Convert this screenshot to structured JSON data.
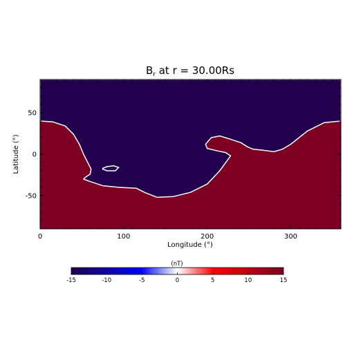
{
  "chart_data": {
    "type": "heatmap",
    "title": "B_r at r = 30.00Rs",
    "title_parts": {
      "main": "B",
      "sub": "r",
      "rest": " at r = 30.00Rs"
    },
    "xlabel": "Longitude (°)",
    "ylabel": "Latitude (°)",
    "xlim": [
      0,
      360
    ],
    "ylim": [
      -90,
      90
    ],
    "xticks": [
      0,
      100,
      200,
      300
    ],
    "yticks": [
      50,
      0,
      -50
    ],
    "colorbar": {
      "label": "(nT)",
      "range": [
        -15,
        15
      ],
      "ticks": [
        -15,
        -10,
        -5,
        0,
        5,
        10,
        15
      ],
      "colors": {
        "negative": "#22004d",
        "zero": "#ffffff",
        "positive": "#7d0023"
      }
    },
    "polarity_regions": {
      "positive_value": 15,
      "negative_value": -15,
      "neutral_line_lon_lat": [
        [
          0,
          40
        ],
        [
          15,
          39
        ],
        [
          30,
          34
        ],
        [
          40,
          24
        ],
        [
          47,
          12
        ],
        [
          52,
          0
        ],
        [
          57,
          -10
        ],
        [
          61,
          -18
        ],
        [
          60,
          -24
        ],
        [
          54,
          -28
        ],
        [
          52,
          -30
        ],
        [
          60,
          -33
        ],
        [
          75,
          -38
        ],
        [
          95,
          -40
        ],
        [
          115,
          -41
        ],
        [
          125,
          -46
        ],
        [
          140,
          -52
        ],
        [
          160,
          -51
        ],
        [
          180,
          -46
        ],
        [
          200,
          -36
        ],
        [
          215,
          -20
        ],
        [
          228,
          -2
        ],
        [
          222,
          2
        ],
        [
          212,
          4
        ],
        [
          200,
          7
        ],
        [
          198,
          12
        ],
        [
          205,
          20
        ],
        [
          215,
          22
        ],
        [
          228,
          18
        ],
        [
          240,
          14
        ],
        [
          248,
          9
        ],
        [
          255,
          6
        ],
        [
          265,
          5
        ],
        [
          280,
          3
        ],
        [
          290,
          6
        ],
        [
          300,
          12
        ],
        [
          320,
          28
        ],
        [
          340,
          38
        ],
        [
          360,
          40
        ]
      ],
      "negative_islands_lon_lat": [
        [
          [
            75,
            -17
          ],
          [
            80,
            -15
          ],
          [
            88,
            -14
          ],
          [
            94,
            -16
          ],
          [
            90,
            -20
          ],
          [
            80,
            -20
          ],
          [
            75,
            -18
          ]
        ]
      ]
    }
  }
}
